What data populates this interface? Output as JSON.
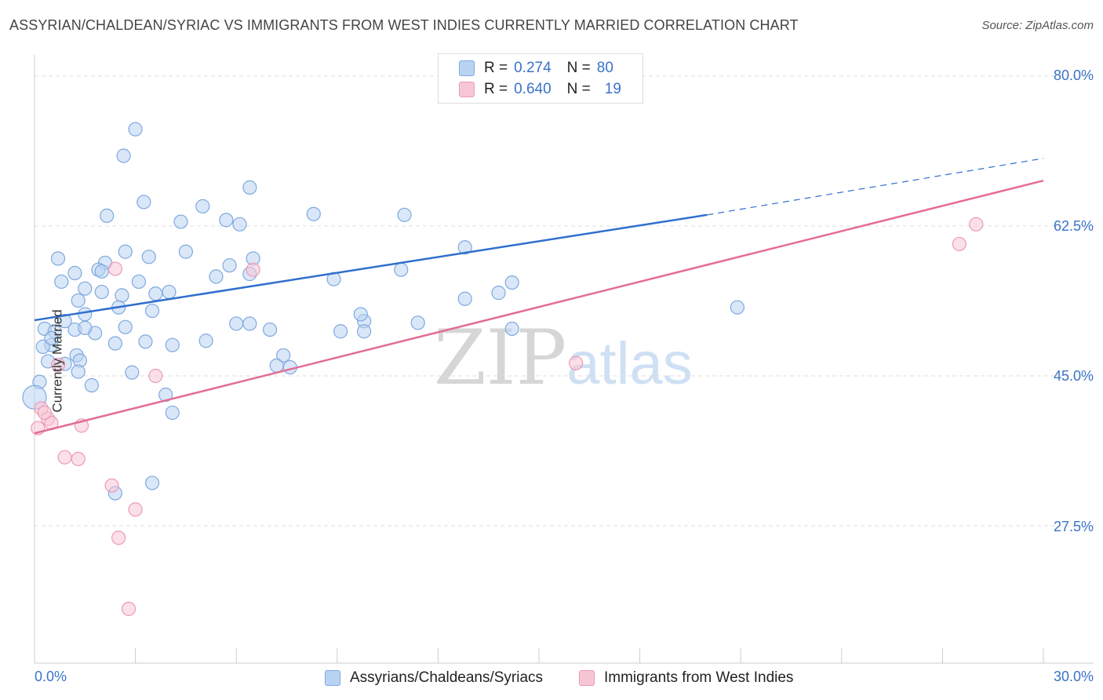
{
  "header": {
    "title": "ASSYRIAN/CHALDEAN/SYRIAC VS IMMIGRANTS FROM WEST INDIES CURRENTLY MARRIED CORRELATION CHART",
    "source": "Source: ZipAtlas.com"
  },
  "watermark": {
    "zip": "ZIP",
    "atlas": "atlas"
  },
  "legend": {
    "rows": [
      {
        "r_label": "R =",
        "r_value": "0.274",
        "n_label": "N =",
        "n_value": "80"
      },
      {
        "r_label": "R =",
        "r_value": "0.640",
        "n_label": "N =",
        "n_value": "19"
      }
    ]
  },
  "bottom_legend": {
    "series_a": "Assyrians/Chaldeans/Syriacs",
    "series_b": "Immigrants from West Indies"
  },
  "axes": {
    "ylabel": "Currently Married",
    "x_ticks": [
      "0.0%",
      "30.0%"
    ],
    "y_ticks": [
      "80.0%",
      "62.5%",
      "45.0%",
      "27.5%"
    ]
  },
  "colors": {
    "blue_fill": "#b9d3f3",
    "blue_stroke": "#7fa9df",
    "blue_line": "#2f6fce",
    "pink_fill": "#f7c6d5",
    "pink_stroke": "#ec9ab5",
    "pink_line": "#e26d97",
    "grid": "#dcdcdc",
    "tick_text": "#3a73c8"
  },
  "chart_data": {
    "type": "scatter",
    "title": "ASSYRIAN/CHALDEAN/SYRIAC VS IMMIGRANTS FROM WEST INDIES CURRENTLY MARRIED CORRELATION CHART",
    "xlabel": "",
    "ylabel": "Currently Married",
    "xlim": [
      0,
      30
    ],
    "ylim": [
      10,
      82
    ],
    "y_gridlines": [
      27.5,
      45.0,
      62.5,
      80.0
    ],
    "grid": true,
    "legend_position": "top-center",
    "series": [
      {
        "name": "Assyrians/Chaldeans/Syriacs",
        "R": 0.274,
        "N": 80,
        "trend": {
          "x": [
            0,
            20
          ],
          "y": [
            51.5,
            63.8
          ],
          "dashed_extension_to": [
            30,
            70.4
          ]
        },
        "points": [
          [
            3.0,
            73.8
          ],
          [
            2.65,
            70.7
          ],
          [
            3.25,
            65.3
          ],
          [
            5.0,
            64.8
          ],
          [
            2.15,
            63.7
          ],
          [
            6.4,
            67.0
          ],
          [
            5.7,
            63.2
          ],
          [
            4.35,
            63.0
          ],
          [
            8.3,
            63.9
          ],
          [
            6.1,
            62.7
          ],
          [
            11.0,
            63.8
          ],
          [
            12.8,
            60.0
          ],
          [
            2.7,
            59.5
          ],
          [
            4.5,
            59.5
          ],
          [
            3.4,
            58.9
          ],
          [
            2.1,
            58.2
          ],
          [
            6.5,
            58.7
          ],
          [
            5.8,
            57.9
          ],
          [
            10.9,
            57.4
          ],
          [
            0.7,
            58.7
          ],
          [
            1.9,
            57.4
          ],
          [
            1.2,
            57.0
          ],
          [
            2.0,
            57.2
          ],
          [
            5.4,
            56.6
          ],
          [
            3.1,
            56.0
          ],
          [
            0.8,
            56.0
          ],
          [
            1.5,
            55.2
          ],
          [
            4.0,
            54.8
          ],
          [
            3.6,
            54.6
          ],
          [
            13.8,
            54.7
          ],
          [
            14.2,
            55.9
          ],
          [
            1.3,
            53.8
          ],
          [
            2.0,
            54.8
          ],
          [
            2.6,
            54.4
          ],
          [
            2.5,
            53.0
          ],
          [
            9.8,
            51.4
          ],
          [
            11.4,
            51.2
          ],
          [
            0.9,
            51.4
          ],
          [
            6.0,
            51.1
          ],
          [
            7.0,
            50.4
          ],
          [
            3.5,
            52.6
          ],
          [
            1.5,
            52.2
          ],
          [
            1.8,
            50.0
          ],
          [
            2.7,
            50.7
          ],
          [
            0.3,
            50.5
          ],
          [
            0.6,
            50.2
          ],
          [
            1.2,
            50.4
          ],
          [
            0.5,
            48.6
          ],
          [
            2.4,
            48.8
          ],
          [
            4.1,
            48.6
          ],
          [
            1.25,
            47.4
          ],
          [
            0.9,
            46.4
          ],
          [
            1.35,
            46.8
          ],
          [
            7.4,
            47.4
          ],
          [
            7.2,
            46.2
          ],
          [
            7.6,
            46.0
          ],
          [
            2.9,
            45.4
          ],
          [
            1.7,
            43.9
          ],
          [
            3.9,
            42.8
          ],
          [
            20.9,
            53.0
          ],
          [
            9.7,
            52.2
          ],
          [
            12.8,
            54.0
          ],
          [
            14.2,
            50.5
          ],
          [
            9.8,
            50.2
          ],
          [
            9.1,
            50.2
          ],
          [
            0.25,
            48.4
          ],
          [
            3.3,
            49.0
          ],
          [
            0.15,
            44.3
          ],
          [
            0.0,
            42.5
          ],
          [
            4.1,
            40.7
          ],
          [
            3.5,
            32.5
          ],
          [
            2.4,
            31.3
          ],
          [
            6.4,
            56.9
          ],
          [
            8.9,
            56.3
          ],
          [
            6.4,
            51.1
          ],
          [
            0.5,
            49.4
          ],
          [
            1.5,
            50.6
          ],
          [
            5.1,
            49.1
          ],
          [
            1.3,
            45.5
          ],
          [
            0.4,
            46.7
          ]
        ]
      },
      {
        "name": "Immigrants from West Indies",
        "R": 0.64,
        "N": 19,
        "trend": {
          "x": [
            0,
            30
          ],
          "y": [
            38.3,
            67.8
          ]
        },
        "points": [
          [
            2.4,
            57.5
          ],
          [
            6.5,
            57.4
          ],
          [
            0.7,
            46.3
          ],
          [
            3.6,
            45.0
          ],
          [
            16.1,
            46.5
          ],
          [
            0.2,
            41.2
          ],
          [
            0.4,
            40.0
          ],
          [
            0.5,
            39.5
          ],
          [
            1.4,
            39.2
          ],
          [
            0.9,
            35.5
          ],
          [
            1.3,
            35.3
          ],
          [
            2.3,
            32.2
          ],
          [
            3.0,
            29.4
          ],
          [
            2.5,
            26.1
          ],
          [
            2.8,
            17.8
          ],
          [
            27.5,
            60.4
          ],
          [
            28.0,
            62.7
          ],
          [
            0.3,
            40.7
          ],
          [
            0.1,
            38.9
          ]
        ]
      }
    ]
  }
}
